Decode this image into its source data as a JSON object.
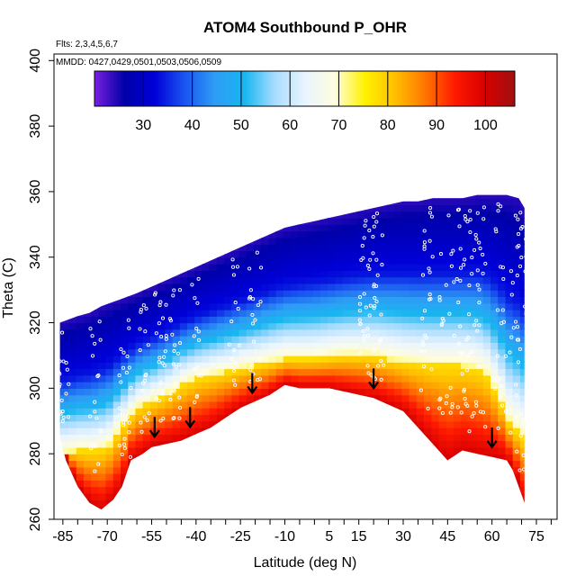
{
  "chart_data": {
    "type": "heatmap",
    "title": "ATOM4 Southbound P_OHR",
    "subtitle_lines": [
      "Flts: 2,3,4,5,6,7",
      "MMDD: 0427,0429,0501,0503,0506,0509"
    ],
    "xlabel": "Latitude (deg N)",
    "ylabel": "Theta (C)",
    "xlim": [
      -88,
      82
    ],
    "ylim": [
      260,
      402
    ],
    "x_ticks": [
      -85,
      -70,
      -55,
      -40,
      -25,
      -10,
      5,
      15,
      30,
      45,
      60,
      75
    ],
    "y_ticks": [
      260,
      280,
      300,
      320,
      340,
      360,
      380,
      400
    ],
    "colorbar": {
      "range": [
        20,
        106
      ],
      "ticks": [
        30,
        40,
        50,
        60,
        70,
        80,
        90,
        100
      ],
      "colors": [
        "#7a1fe0",
        "#0000a8",
        "#0000d8",
        "#1a55f0",
        "#2f9cf5",
        "#18b6f0",
        "#a8dcff",
        "#e8f4ff",
        "#fffde0",
        "#fff200",
        "#ffc000",
        "#ff7700",
        "#ff1a00",
        "#d80000",
        "#a01010"
      ]
    },
    "domain": {
      "top_boundary": [
        [
          -86,
          320
        ],
        [
          -80,
          322
        ],
        [
          -76,
          323
        ],
        [
          -72,
          325
        ],
        [
          -66,
          327
        ],
        [
          -60,
          329
        ],
        [
          -55,
          331
        ],
        [
          -50,
          333
        ],
        [
          -45,
          335
        ],
        [
          -40,
          337
        ],
        [
          -35,
          339
        ],
        [
          -30,
          341
        ],
        [
          -25,
          343
        ],
        [
          -20,
          345
        ],
        [
          -15,
          347
        ],
        [
          -10,
          349
        ],
        [
          -5,
          350
        ],
        [
          0,
          351
        ],
        [
          5,
          352
        ],
        [
          10,
          353
        ],
        [
          15,
          354
        ],
        [
          20,
          355
        ],
        [
          25,
          356
        ],
        [
          30,
          357
        ],
        [
          35,
          357
        ],
        [
          40,
          358
        ],
        [
          45,
          358
        ],
        [
          50,
          358
        ],
        [
          55,
          359
        ],
        [
          60,
          359
        ],
        [
          65,
          359
        ],
        [
          69,
          358
        ],
        [
          71,
          355
        ]
      ],
      "bottom_boundary": [
        [
          71,
          265
        ],
        [
          69,
          270
        ],
        [
          67,
          275
        ],
        [
          65,
          278
        ],
        [
          60,
          279
        ],
        [
          55,
          280
        ],
        [
          50,
          281
        ],
        [
          45,
          278
        ],
        [
          40,
          283
        ],
        [
          35,
          288
        ],
        [
          30,
          293
        ],
        [
          25,
          295
        ],
        [
          20,
          297
        ],
        [
          15,
          298
        ],
        [
          10,
          299
        ],
        [
          5,
          300
        ],
        [
          0,
          300
        ],
        [
          -5,
          300
        ],
        [
          -10,
          301
        ],
        [
          -15,
          298
        ],
        [
          -20,
          296
        ],
        [
          -25,
          294
        ],
        [
          -30,
          291
        ],
        [
          -35,
          288
        ],
        [
          -40,
          286
        ],
        [
          -45,
          284
        ],
        [
          -50,
          283
        ],
        [
          -55,
          282
        ],
        [
          -58,
          280
        ],
        [
          -62,
          278
        ],
        [
          -65,
          270
        ],
        [
          -68,
          266
        ],
        [
          -72,
          263
        ],
        [
          -76,
          265
        ],
        [
          -80,
          270
        ],
        [
          -84,
          278
        ],
        [
          -86,
          285
        ]
      ],
      "surface_isotherm": [
        [
          -86,
          280
        ],
        [
          -80,
          281
        ],
        [
          -75,
          281
        ],
        [
          -70,
          282
        ],
        [
          -66,
          287
        ],
        [
          -60,
          294
        ],
        [
          -55,
          296
        ],
        [
          -50,
          298
        ],
        [
          -45,
          301
        ],
        [
          -40,
          303
        ],
        [
          -30,
          305
        ],
        [
          -20,
          307
        ],
        [
          -10,
          309
        ],
        [
          0,
          309
        ],
        [
          10,
          310
        ],
        [
          20,
          310
        ],
        [
          30,
          308
        ],
        [
          40,
          307
        ],
        [
          50,
          307
        ],
        [
          55,
          306
        ],
        [
          58,
          304
        ],
        [
          62,
          298
        ],
        [
          66,
          289
        ],
        [
          71,
          285
        ]
      ]
    },
    "flight_markers_lat": [
      -54,
      -42,
      -21,
      20,
      60
    ]
  }
}
